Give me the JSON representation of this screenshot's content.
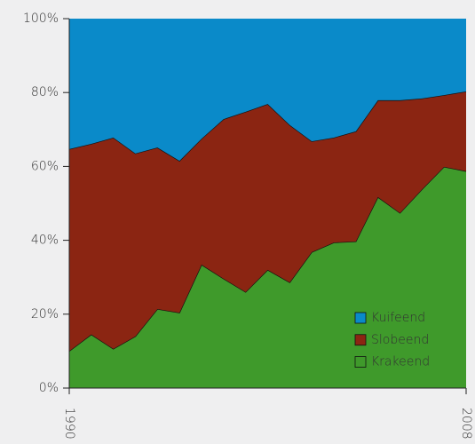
{
  "chart_data": {
    "type": "stacked_area",
    "x": [
      1990,
      1991,
      1992,
      1993,
      1994,
      1995,
      1996,
      1997,
      1998,
      1999,
      2000,
      2001,
      2002,
      2003,
      2004,
      2005,
      2006,
      2007,
      2008
    ],
    "series": [
      {
        "name": "Krakeend",
        "color": "#3f9a2b",
        "values": [
          10,
          14.5,
          10.6,
          14,
          21.4,
          20.4,
          33.4,
          29.6,
          26,
          32,
          28.6,
          36.8,
          39.4,
          39.7,
          51.7,
          47.4,
          53.8,
          59.9,
          58.7
        ]
      },
      {
        "name": "Slobeend",
        "color": "#8b2512",
        "values": [
          54.7,
          51.6,
          57.2,
          49.5,
          43.7,
          41.1,
          34.1,
          43.2,
          48.8,
          44.9,
          42.6,
          30,
          28.4,
          29.8,
          26.2,
          30.5,
          24.6,
          19.4,
          21.6
        ]
      },
      {
        "name": "Kuifeend",
        "color": "#0a8ac9",
        "values": [
          35.3,
          33.9,
          32.2,
          36.5,
          34.9,
          38.5,
          32.5,
          27.2,
          25.2,
          23.1,
          28.8,
          33.2,
          32.2,
          30.5,
          22.1,
          22.1,
          21.6,
          20.7,
          19.7
        ]
      }
    ],
    "xlim": [
      1990,
      2008
    ],
    "xticks": [
      1990,
      2008
    ],
    "ylim": [
      0,
      100
    ],
    "yticks": [
      {
        "value": 0,
        "label": "0%"
      },
      {
        "value": 20,
        "label": "20%"
      },
      {
        "value": 40,
        "label": "40%"
      },
      {
        "value": 60,
        "label": "60%"
      },
      {
        "value": 80,
        "label": "80%"
      },
      {
        "value": 100,
        "label": "100%"
      }
    ],
    "legend": "lower right"
  }
}
